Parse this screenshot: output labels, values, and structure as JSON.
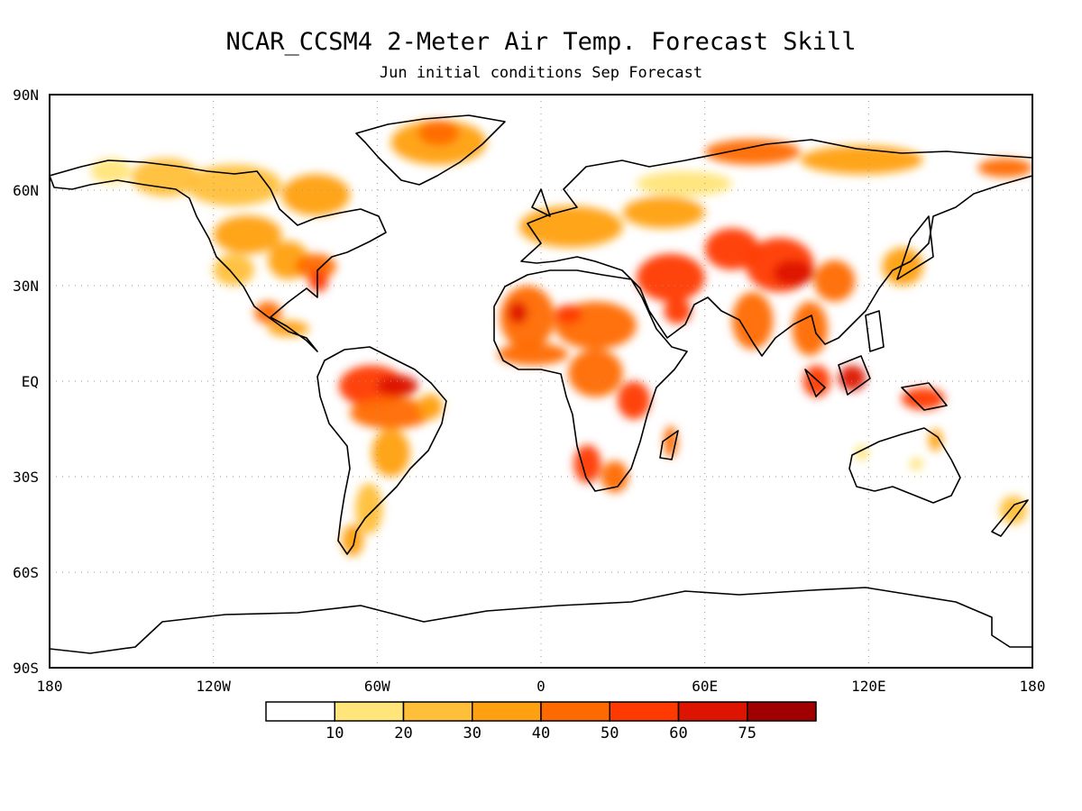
{
  "title": "NCAR_CCSM4 2-Meter Air Temp. Forecast Skill",
  "subtitle": "Jun initial conditions  Sep Forecast",
  "map": {
    "projection": "cylindrical-equidistant",
    "lon_range": [
      -180,
      180
    ],
    "lat_range": [
      -90,
      90
    ],
    "grid": true,
    "lon_ticks": [
      {
        "value": -180,
        "label": "180"
      },
      {
        "value": -120,
        "label": "120W"
      },
      {
        "value": -60,
        "label": "60W"
      },
      {
        "value": 0,
        "label": "0"
      },
      {
        "value": 60,
        "label": "60E"
      },
      {
        "value": 120,
        "label": "120E"
      },
      {
        "value": 180,
        "label": "180"
      }
    ],
    "lat_ticks": [
      {
        "value": 90,
        "label": "90N"
      },
      {
        "value": 60,
        "label": "60N"
      },
      {
        "value": 30,
        "label": "30N"
      },
      {
        "value": 0,
        "label": "EQ"
      },
      {
        "value": -30,
        "label": "30S"
      },
      {
        "value": -60,
        "label": "60S"
      },
      {
        "value": -90,
        "label": "90S"
      }
    ]
  },
  "legend": {
    "placement": "bottom",
    "bins": [
      {
        "color": "#ffffff"
      },
      {
        "color": "#ffe57a"
      },
      {
        "color": "#ffbf3a"
      },
      {
        "color": "#ffa010"
      },
      {
        "color": "#ff6a00"
      },
      {
        "color": "#ff3a00"
      },
      {
        "color": "#dd1400"
      },
      {
        "color": "#a00000"
      }
    ],
    "ticks": [
      "10",
      "20",
      "30",
      "40",
      "50",
      "60",
      "75"
    ]
  },
  "chart_data": {
    "type": "heatmap",
    "variable": "2-Meter Air Temp. Forecast Skill",
    "levels": [
      10,
      20,
      30,
      40,
      50,
      60,
      75
    ],
    "regions": [
      {
        "lon": [
          -165,
          -150
        ],
        "lat": [
          62,
          70
        ],
        "level": 1
      },
      {
        "lon": [
          -150,
          -125
        ],
        "lat": [
          58,
          70
        ],
        "level": 2
      },
      {
        "lon": [
          -130,
          -95
        ],
        "lat": [
          55,
          68
        ],
        "level": 2
      },
      {
        "lon": [
          -95,
          -70
        ],
        "lat": [
          52,
          65
        ],
        "level": 3
      },
      {
        "lon": [
          -120,
          -95
        ],
        "lat": [
          40,
          52
        ],
        "level": 3
      },
      {
        "lon": [
          -120,
          -105
        ],
        "lat": [
          30,
          40
        ],
        "level": 2
      },
      {
        "lon": [
          -100,
          -85
        ],
        "lat": [
          32,
          44
        ],
        "level": 3
      },
      {
        "lon": [
          -90,
          -75
        ],
        "lat": [
          32,
          40
        ],
        "level": 4
      },
      {
        "lon": [
          -85,
          -78
        ],
        "lat": [
          28,
          35
        ],
        "level": 5
      },
      {
        "lon": [
          -105,
          -95
        ],
        "lat": [
          18,
          25
        ],
        "level": 4
      },
      {
        "lon": [
          -100,
          -85
        ],
        "lat": [
          14,
          19
        ],
        "level": 3
      },
      {
        "lon": [
          -55,
          -20
        ],
        "lat": [
          68,
          82
        ],
        "level": 3
      },
      {
        "lon": [
          -45,
          -30
        ],
        "lat": [
          74,
          82
        ],
        "level": 4
      },
      {
        "lon": [
          -74,
          -50
        ],
        "lat": [
          -8,
          5
        ],
        "level": 5
      },
      {
        "lon": [
          -60,
          -45
        ],
        "lat": [
          -5,
          2
        ],
        "level": 6
      },
      {
        "lon": [
          -70,
          -40
        ],
        "lat": [
          -15,
          -5
        ],
        "level": 4
      },
      {
        "lon": [
          -45,
          -36
        ],
        "lat": [
          -12,
          -4
        ],
        "level": 3
      },
      {
        "lon": [
          -62,
          -48
        ],
        "lat": [
          -30,
          -15
        ],
        "level": 3
      },
      {
        "lon": [
          -68,
          -58
        ],
        "lat": [
          -48,
          -32
        ],
        "level": 2
      },
      {
        "lon": [
          -73,
          -65
        ],
        "lat": [
          -55,
          -45
        ],
        "level": 3
      },
      {
        "lon": [
          -15,
          5
        ],
        "lat": [
          10,
          30
        ],
        "level": 4
      },
      {
        "lon": [
          -12,
          -5
        ],
        "lat": [
          18,
          25
        ],
        "level": 6
      },
      {
        "lon": [
          5,
          35
        ],
        "lat": [
          10,
          25
        ],
        "level": 4
      },
      {
        "lon": [
          5,
          15
        ],
        "lat": [
          18,
          24
        ],
        "level": 5
      },
      {
        "lon": [
          -16,
          10
        ],
        "lat": [
          5,
          12
        ],
        "level": 4
      },
      {
        "lon": [
          10,
          30
        ],
        "lat": [
          -5,
          10
        ],
        "level": 4
      },
      {
        "lon": [
          28,
          40
        ],
        "lat": [
          -12,
          0
        ],
        "level": 5
      },
      {
        "lon": [
          12,
          22
        ],
        "lat": [
          -32,
          -20
        ],
        "level": 5
      },
      {
        "lon": [
          22,
          32
        ],
        "lat": [
          -35,
          -25
        ],
        "level": 4
      },
      {
        "lon": [
          45,
          50
        ],
        "lat": [
          -24,
          -14
        ],
        "level": 4
      },
      {
        "lon": [
          -8,
          30
        ],
        "lat": [
          42,
          55
        ],
        "level": 3
      },
      {
        "lon": [
          30,
          60
        ],
        "lat": [
          48,
          58
        ],
        "level": 3
      },
      {
        "lon": [
          35,
          60
        ],
        "lat": [
          25,
          40
        ],
        "level": 5
      },
      {
        "lon": [
          45,
          55
        ],
        "lat": [
          18,
          26
        ],
        "level": 5
      },
      {
        "lon": [
          60,
          80
        ],
        "lat": [
          35,
          48
        ],
        "level": 5
      },
      {
        "lon": [
          75,
          100
        ],
        "lat": [
          28,
          45
        ],
        "level": 5
      },
      {
        "lon": [
          85,
          100
        ],
        "lat": [
          30,
          38
        ],
        "level": 6
      },
      {
        "lon": [
          100,
          115
        ],
        "lat": [
          25,
          38
        ],
        "level": 4
      },
      {
        "lon": [
          70,
          85
        ],
        "lat": [
          10,
          28
        ],
        "level": 4
      },
      {
        "lon": [
          92,
          105
        ],
        "lat": [
          8,
          25
        ],
        "level": 4
      },
      {
        "lon": [
          60,
          95
        ],
        "lat": [
          68,
          76
        ],
        "level": 4
      },
      {
        "lon": [
          95,
          140
        ],
        "lat": [
          65,
          74
        ],
        "level": 3
      },
      {
        "lon": [
          160,
          180
        ],
        "lat": [
          64,
          70
        ],
        "level": 4
      },
      {
        "lon": [
          35,
          70
        ],
        "lat": [
          58,
          66
        ],
        "level": 1
      },
      {
        "lon": [
          109,
          119
        ],
        "lat": [
          -3,
          5
        ],
        "level": 6
      },
      {
        "lon": [
          96,
          106
        ],
        "lat": [
          -5,
          5
        ],
        "level": 5
      },
      {
        "lon": [
          132,
          148
        ],
        "lat": [
          -9,
          -2
        ],
        "level": 5
      },
      {
        "lon": [
          125,
          140
        ],
        "lat": [
          30,
          42
        ],
        "level": 3
      },
      {
        "lon": [
          115,
          120
        ],
        "lat": [
          -25,
          -20
        ],
        "level": 1
      },
      {
        "lon": [
          135,
          140
        ],
        "lat": [
          -28,
          -24
        ],
        "level": 1
      },
      {
        "lon": [
          142,
          147
        ],
        "lat": [
          -22,
          -15
        ],
        "level": 3
      },
      {
        "lon": [
          168,
          178
        ],
        "lat": [
          -45,
          -36
        ],
        "level": 2
      }
    ]
  }
}
